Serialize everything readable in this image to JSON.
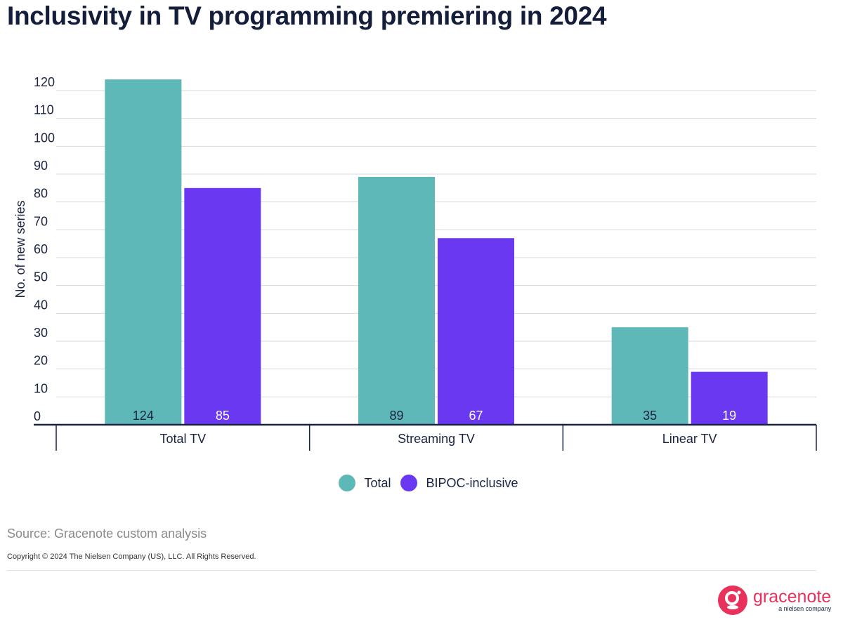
{
  "chart_data": {
    "type": "bar",
    "title": "Inclusivity in TV programming premiering in 2024",
    "xlabel": "",
    "ylabel": "No. of new series",
    "ylim": [
      0,
      120
    ],
    "yticks": [
      0,
      10,
      20,
      30,
      40,
      50,
      60,
      70,
      80,
      90,
      100,
      110,
      120
    ],
    "grid": true,
    "legend_position": "bottom",
    "categories": [
      "Total TV",
      "Streaming TV",
      "Linear TV"
    ],
    "series": [
      {
        "name": "Total",
        "values": [
          124,
          89,
          35
        ],
        "color": "#5fb8b8",
        "label_color": "#1a2340"
      },
      {
        "name": "BIPOC-inclusive",
        "values": [
          85,
          67,
          19
        ],
        "color": "#6a38f0",
        "label_color": "#ffffff"
      }
    ]
  },
  "footer": {
    "source": "Source: Gracenote custom analysis",
    "copyright": "Copyright © 2024 The Nielsen Company (US), LLC. All Rights Reserved.",
    "logo_word": "gracenote",
    "logo_sub": "a nielsen company",
    "logo_color": "#e8315b"
  }
}
